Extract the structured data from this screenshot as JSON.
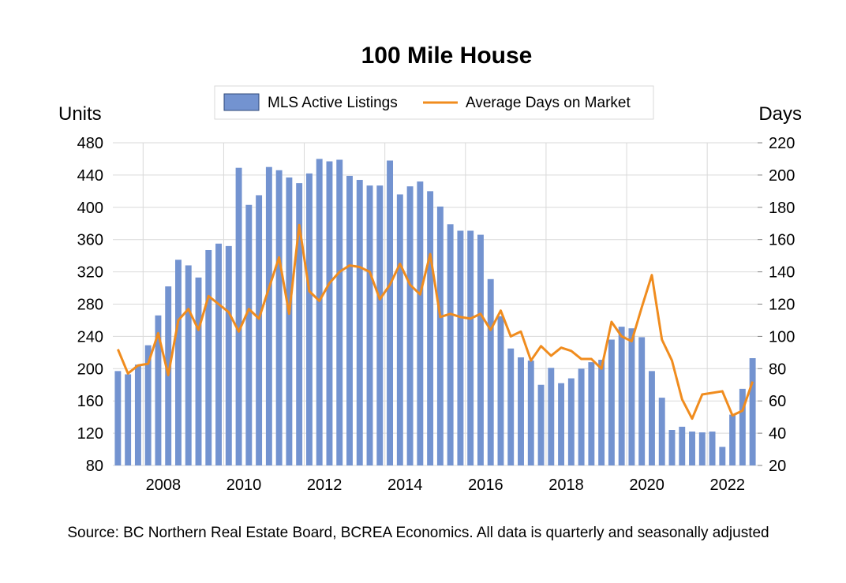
{
  "chart_data": {
    "type": "bar+line",
    "title": "100 Mile House",
    "left_axis_label": "Units",
    "right_axis_label": "Days",
    "source": "Source: BC Northern Real Estate Board, BCREA Economics. All data is quarterly and seasonally adjusted",
    "left_ylim": [
      80,
      480
    ],
    "left_ticks": [
      80,
      120,
      160,
      200,
      240,
      280,
      320,
      360,
      400,
      440,
      480
    ],
    "right_ylim": [
      20,
      220
    ],
    "right_ticks": [
      20,
      40,
      60,
      80,
      100,
      120,
      140,
      160,
      180,
      200,
      220
    ],
    "x_year_labels": [
      "2008",
      "2010",
      "2012",
      "2014",
      "2016",
      "2018",
      "2020",
      "2022"
    ],
    "x_year_label_index": [
      5,
      13,
      21,
      29,
      37,
      45,
      53,
      61
    ],
    "x_grid_index": [
      3,
      11,
      19,
      27,
      35,
      43,
      51,
      59
    ],
    "legend": {
      "position": "top-center",
      "entries": [
        "MLS Active Listings",
        "Average Days on Market"
      ]
    },
    "colors": {
      "bars": "#7393d0",
      "bar_border": "#5a79b8",
      "line": "#f08c1e",
      "grid": "#d9d9d9"
    },
    "series": [
      {
        "name": "MLS Active Listings",
        "type": "bar",
        "axis": "left",
        "values": [
          197,
          193,
          205,
          229,
          266,
          302,
          335,
          328,
          313,
          347,
          355,
          352,
          449,
          403,
          415,
          450,
          446,
          437,
          430,
          442,
          460,
          457,
          459,
          439,
          434,
          427,
          427,
          458,
          416,
          426,
          432,
          420,
          401,
          379,
          371,
          371,
          366,
          311,
          265,
          225,
          214,
          210,
          180,
          201,
          182,
          188,
          200,
          208,
          211,
          236,
          252,
          250,
          239,
          197,
          164,
          124,
          128,
          122,
          121,
          122,
          103,
          143,
          175,
          213
        ]
      },
      {
        "name": "Average Days on Market",
        "type": "line",
        "axis": "right",
        "values": [
          92,
          77,
          82,
          83,
          102,
          76,
          110,
          117,
          104,
          125,
          120,
          115,
          103,
          117,
          111,
          130,
          149,
          114,
          169,
          128,
          122,
          133,
          140,
          144,
          143,
          140,
          123,
          132,
          145,
          132,
          126,
          151,
          112,
          114,
          112,
          111,
          114,
          104,
          116,
          100,
          103,
          85,
          94,
          88,
          93,
          91,
          86,
          86,
          80,
          109,
          100,
          97,
          118,
          138,
          98,
          85,
          61,
          49,
          64,
          65,
          66,
          51,
          54,
          72
        ]
      }
    ]
  }
}
